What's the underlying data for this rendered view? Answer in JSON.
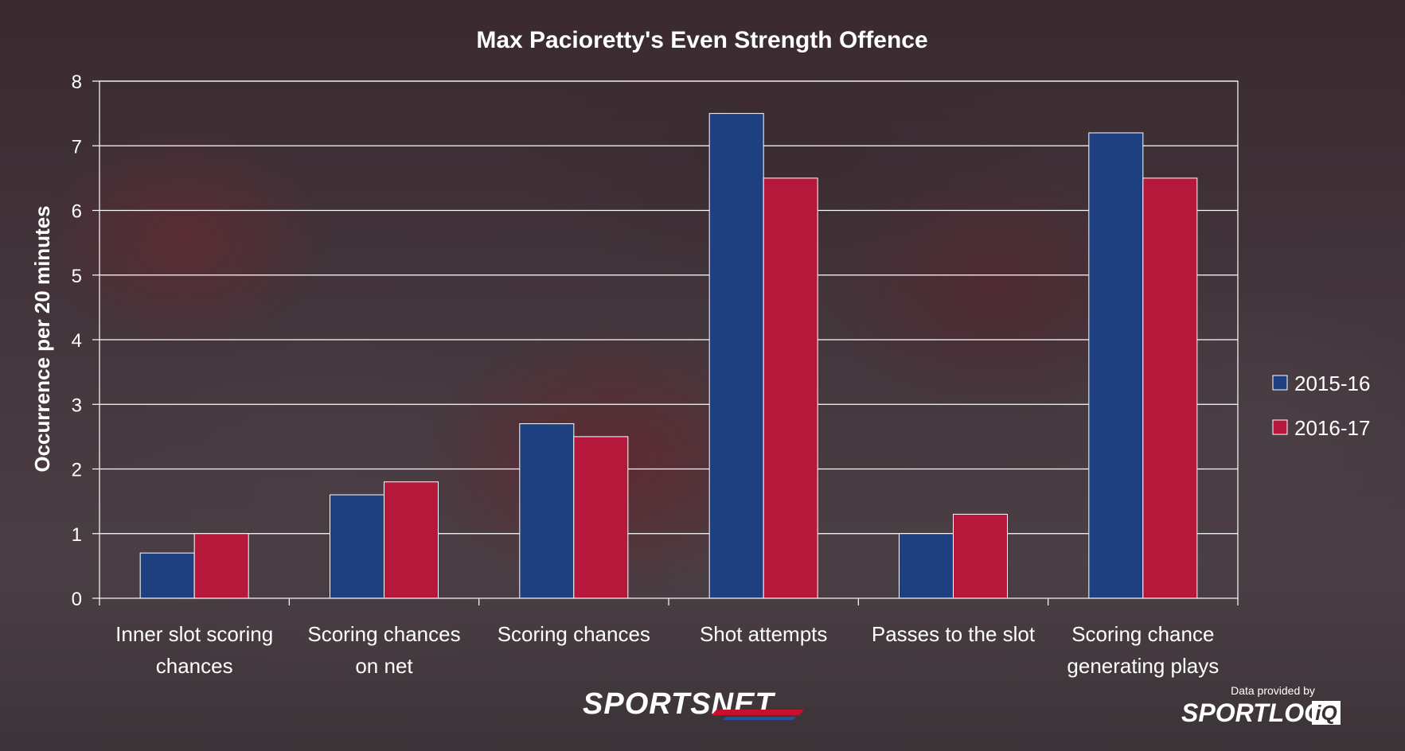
{
  "chart_data": {
    "type": "bar",
    "title": "Max Pacioretty's Even Strength Offence",
    "xlabel": "",
    "ylabel": "Occurrence per 20 minutes",
    "ylim": [
      0,
      8
    ],
    "yticks": [
      0,
      1,
      2,
      3,
      4,
      5,
      6,
      7,
      8
    ],
    "grid": true,
    "legend_position": "right",
    "categories": [
      [
        "Inner slot scoring",
        "chances"
      ],
      [
        "Scoring chances",
        "on net"
      ],
      [
        "Scoring chances"
      ],
      [
        "Shot attempts"
      ],
      [
        "Passes to the slot"
      ],
      [
        "Scoring chance",
        "generating plays"
      ]
    ],
    "series": [
      {
        "name": "2015-16",
        "color": "#1e3f80",
        "values": [
          0.7,
          1.6,
          2.7,
          7.5,
          1.0,
          7.2
        ]
      },
      {
        "name": "2016-17",
        "color": "#b5183a",
        "values": [
          1.0,
          1.8,
          2.5,
          6.5,
          1.3,
          6.5
        ]
      }
    ]
  },
  "branding": {
    "logo": "SPORTSNET",
    "credit_line": "Data provided by",
    "credit_logo": "SPORTLOG",
    "credit_logo_suffix": "iQ"
  }
}
